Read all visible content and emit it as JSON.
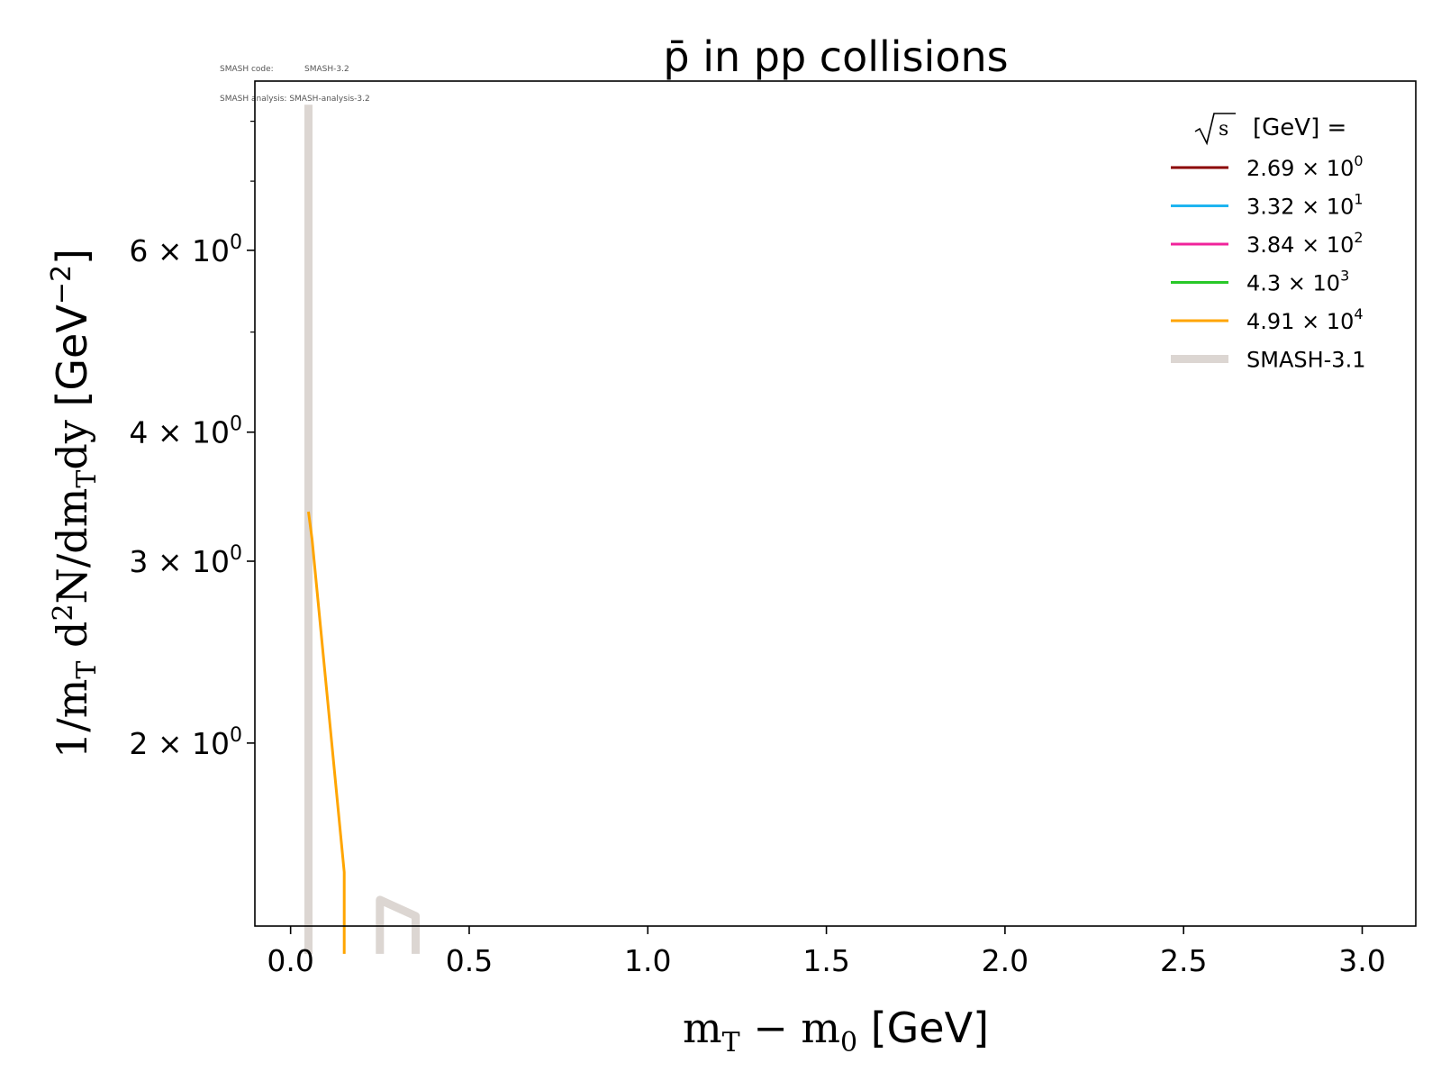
{
  "annotation": {
    "code_label": "SMASH code:",
    "code_value": "SMASH-3.2",
    "analysis_label": "SMASH analysis:",
    "analysis_value": "SMASH-analysis-3.2"
  },
  "chart_data": {
    "type": "line",
    "title": "p̄ in pp collisions",
    "xlabel": "m_T − m_0 [GeV]",
    "ylabel": "1/m_T d²N/dm_Tdy [GeV⁻²]",
    "xlim": [
      -0.1,
      3.15
    ],
    "ylim": [
      1.33,
      8.75
    ],
    "yscale": "log",
    "grid": false,
    "legend_position": "top-right",
    "legend_title": "√s [GeV] =",
    "xticks": [
      0.0,
      0.5,
      1.0,
      1.5,
      2.0,
      2.5,
      3.0
    ],
    "xtick_labels": [
      "0.0",
      "0.5",
      "1.0",
      "1.5",
      "2.0",
      "2.5",
      "3.0"
    ],
    "yticks_major": [
      2,
      3,
      4,
      6
    ],
    "ytick_labels": [
      {
        "mant": "2",
        "exp": "0"
      },
      {
        "mant": "3",
        "exp": "0"
      },
      {
        "mant": "4",
        "exp": "0"
      },
      {
        "mant": "6",
        "exp": "0"
      }
    ],
    "yticks_minor": [
      5,
      7,
      8
    ],
    "series": [
      {
        "name": "2.69 × 10^0",
        "mant": "2.69",
        "exp": "0",
        "color": "#8b0000",
        "width": 3,
        "x": [],
        "y": []
      },
      {
        "name": "3.32 × 10^1",
        "mant": "3.32",
        "exp": "1",
        "color": "#1eb4f0",
        "width": 3,
        "x": [],
        "y": []
      },
      {
        "name": "3.84 × 10^2",
        "mant": "3.84",
        "exp": "2",
        "color": "#f0239b",
        "width": 3,
        "x": [],
        "y": []
      },
      {
        "name": "4.3 × 10^3",
        "mant": "4.3",
        "exp": "3",
        "color": "#28c828",
        "width": 3,
        "x": [],
        "y": []
      },
      {
        "name": "4.91 × 10^4",
        "mant": "4.91",
        "exp": "4",
        "color": "#ffa500",
        "width": 3,
        "x": [
          0.05,
          0.06,
          0.15,
          0.15
        ],
        "y": [
          3.35,
          3.15,
          1.5,
          1.25
        ]
      },
      {
        "name": "SMASH-3.1",
        "mant": "",
        "exp": "",
        "color": "#dcd6d2",
        "width": 9,
        "segments": [
          {
            "x": [
              0.05,
              0.05
            ],
            "y": [
              1.25,
              8.3
            ]
          },
          {
            "x": [
              0.25,
              0.25,
              0.35,
              0.35
            ],
            "y": [
              1.25,
              1.41,
              1.36,
              1.25
            ]
          }
        ]
      }
    ]
  }
}
